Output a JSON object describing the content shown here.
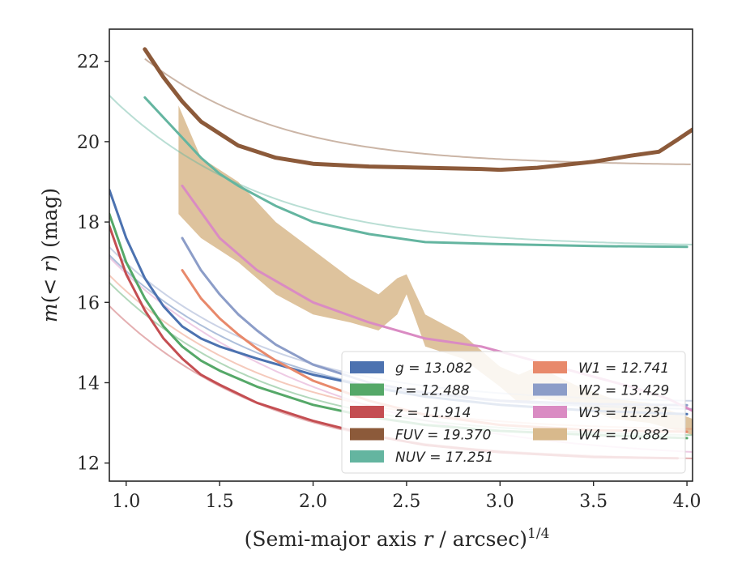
{
  "chart_data": {
    "type": "line",
    "xlabel": "(Semi-major axis r / arcsec)",
    "xlabel_parts": {
      "pre": "(Semi-major axis ",
      "var": "r",
      "post": " / arcsec)",
      "sup": "1/4"
    },
    "ylabel": "m(< r) (mag)",
    "ylabel_parts": {
      "m": "m",
      "open": "(< ",
      "r": "r",
      "close": ") (mag)"
    },
    "xlim": [
      0.91,
      4.03
    ],
    "ylim": [
      22.8,
      11.55
    ],
    "y_inverted": true,
    "x_ticks": [
      1.0,
      1.5,
      2.0,
      2.5,
      3.0,
      3.5,
      4.0
    ],
    "x_tick_labels": [
      "1.0",
      "1.5",
      "2.0",
      "2.5",
      "3.0",
      "3.5",
      "4.0"
    ],
    "y_ticks": [
      12,
      14,
      16,
      18,
      20,
      22
    ],
    "y_tick_labels": [
      "12",
      "14",
      "16",
      "18",
      "20",
      "22"
    ],
    "grid": false,
    "legend_position": "lower-right",
    "series": [
      {
        "key": "g",
        "label": "g = 13.082",
        "color": "#4c72b0",
        "model_mag": 13.25,
        "model_scale": 0.62,
        "model_start": 0.91,
        "x": [
          0.91,
          1.0,
          1.1,
          1.2,
          1.3,
          1.4,
          1.5,
          1.7,
          2.0,
          2.3,
          2.6,
          3.0,
          3.5,
          4.0
        ],
        "y": [
          18.8,
          17.6,
          16.6,
          15.9,
          15.4,
          15.1,
          14.9,
          14.6,
          14.2,
          13.9,
          13.65,
          13.45,
          13.3,
          13.22
        ]
      },
      {
        "key": "r",
        "label": "r = 12.488",
        "color": "#55a868",
        "model_mag": 12.6,
        "model_scale": 0.6,
        "model_start": 0.91,
        "x": [
          0.91,
          1.0,
          1.1,
          1.2,
          1.3,
          1.4,
          1.5,
          1.7,
          2.0,
          2.3,
          2.6,
          3.0,
          3.5,
          4.0
        ],
        "y": [
          18.2,
          17.0,
          16.1,
          15.4,
          14.9,
          14.55,
          14.3,
          13.9,
          13.45,
          13.15,
          12.95,
          12.8,
          12.7,
          12.62
        ]
      },
      {
        "key": "z",
        "label": "z = 11.914",
        "color": "#c44e52",
        "model_mag": 12.02,
        "model_scale": 0.6,
        "model_start": 0.91,
        "x": [
          0.91,
          1.0,
          1.1,
          1.2,
          1.3,
          1.4,
          1.5,
          1.7,
          2.0,
          2.3,
          2.6,
          3.0,
          3.5,
          3.95
        ],
        "y": [
          17.9,
          16.7,
          15.8,
          15.1,
          14.6,
          14.2,
          13.95,
          13.5,
          13.05,
          12.7,
          12.45,
          12.27,
          12.15,
          12.12
        ]
      },
      {
        "key": "FUV",
        "label": "FUV = 19.370",
        "color": "#8c5a3a",
        "model_mag": 19.37,
        "model_scale": 0.4,
        "model_start": 1.1,
        "x": [
          1.1,
          1.2,
          1.3,
          1.4,
          1.5,
          1.6,
          1.8,
          2.0,
          2.3,
          2.6,
          2.9,
          3.0,
          3.2,
          3.5,
          3.7,
          3.85,
          3.95,
          4.03
        ],
        "y": [
          22.3,
          21.6,
          21.0,
          20.5,
          20.2,
          19.9,
          19.6,
          19.45,
          19.38,
          19.35,
          19.32,
          19.3,
          19.35,
          19.5,
          19.65,
          19.75,
          20.05,
          20.3
        ]
      },
      {
        "key": "NUV",
        "label": "NUV = 17.251",
        "color": "#64b5a0",
        "model_mag": 17.35,
        "model_scale": 0.55,
        "model_start": 0.91,
        "x": [
          1.1,
          1.2,
          1.3,
          1.4,
          1.5,
          1.6,
          1.8,
          2.0,
          2.3,
          2.6,
          3.0,
          3.5,
          4.0
        ],
        "y": [
          21.1,
          20.6,
          20.1,
          19.6,
          19.2,
          18.9,
          18.4,
          18.0,
          17.7,
          17.5,
          17.45,
          17.4,
          17.38
        ]
      },
      {
        "key": "W1",
        "label": "W1 = 12.741",
        "color": "#e8896b",
        "model_mag": 12.75,
        "model_scale": 0.62,
        "model_start": 0.91,
        "x": [
          1.3,
          1.4,
          1.5,
          1.6,
          1.7,
          1.8,
          2.0,
          2.3,
          2.6,
          3.0,
          3.5,
          4.0
        ],
        "y": [
          16.8,
          16.1,
          15.6,
          15.2,
          14.85,
          14.55,
          14.05,
          13.55,
          13.2,
          12.95,
          12.82,
          12.78
        ]
      },
      {
        "key": "W2",
        "label": "W2 = 13.429",
        "color": "#8c9dc8",
        "model_mag": 13.45,
        "model_scale": 0.62,
        "model_start": 0.91,
        "x": [
          1.3,
          1.4,
          1.5,
          1.6,
          1.7,
          1.8,
          2.0,
          2.3,
          2.6,
          3.0,
          3.5,
          4.0
        ],
        "y": [
          17.6,
          16.8,
          16.2,
          15.7,
          15.3,
          14.95,
          14.45,
          14.0,
          13.75,
          13.55,
          13.47,
          13.44
        ]
      },
      {
        "key": "W3",
        "label": "W3 = 11.231",
        "color": "#da8bc3",
        "model_mag": 12.0,
        "model_scale": 1.9,
        "model_start": 0.91,
        "x": [
          1.3,
          1.5,
          1.7,
          2.0,
          2.3,
          2.6,
          2.9,
          3.1,
          3.3,
          3.5,
          3.7,
          3.9,
          4.03
        ],
        "y": [
          18.9,
          17.6,
          16.8,
          16.0,
          15.5,
          15.1,
          14.9,
          14.65,
          14.4,
          14.15,
          13.9,
          13.6,
          13.3
        ]
      },
      {
        "key": "W4",
        "label": "W4 = 10.882",
        "color": "#d8b98c",
        "model_mag": null,
        "model_scale": null,
        "model_start": null,
        "x": [
          1.28,
          1.4,
          1.6,
          1.8,
          2.0,
          2.2,
          2.35,
          2.45,
          2.5,
          2.6,
          2.8,
          3.0,
          3.1,
          3.2,
          3.4,
          3.6,
          3.8,
          4.03
        ],
        "y_upper": [
          18.2,
          17.6,
          17.0,
          16.2,
          15.7,
          15.5,
          15.3,
          15.7,
          16.2,
          14.9,
          14.6,
          13.9,
          13.5,
          13.6,
          13.5,
          13.1,
          13.0,
          12.7
        ],
        "y_lower": [
          20.9,
          19.6,
          19.0,
          18.0,
          17.3,
          16.6,
          16.2,
          16.6,
          16.7,
          15.7,
          15.2,
          14.4,
          14.2,
          14.4,
          13.95,
          13.6,
          13.5,
          13.1
        ]
      }
    ]
  }
}
